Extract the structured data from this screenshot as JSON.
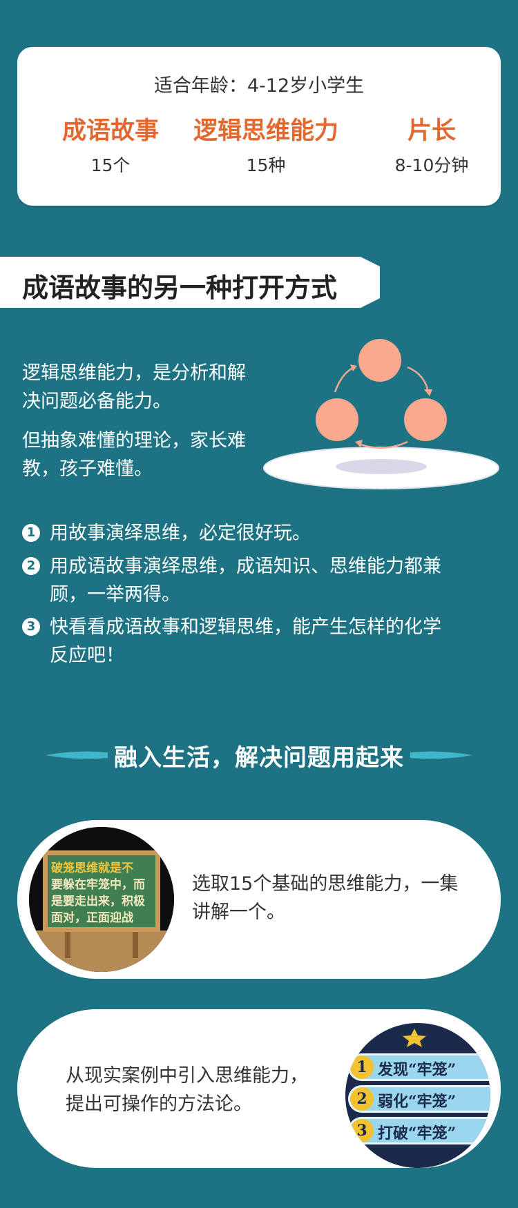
{
  "top_card": {
    "age_text": "适合年龄：4-12岁小学生",
    "stats": [
      {
        "label": "成语故事",
        "value": "15个"
      },
      {
        "label": "逻辑思维能力",
        "value": "15种"
      },
      {
        "label": "片长",
        "value": "8-10分钟"
      }
    ]
  },
  "section1": {
    "title": "成语故事的另一种打开方式",
    "paragraphs": [
      "逻辑思维能力，是分析和解决问题必备能力。",
      "但抽象难懂的理论，家长难教，孩子难懂。"
    ],
    "list": [
      {
        "num": "1",
        "text": "用故事演绎思维，必定很好玩。"
      },
      {
        "num": "2",
        "text": "用成语故事演绎思维，成语知识、思维能力都兼顾，一举两得。"
      },
      {
        "num": "3",
        "text": "快看看成语故事和逻辑思维，能产生怎样的化学反应吧！"
      }
    ]
  },
  "section2": {
    "title": "融入生活，解决问题用起来",
    "cards": [
      {
        "text": "选取15个基础的思维能力，一集讲解一个。",
        "board_lines": [
          "破笼思维就是不",
          "要躲在牢笼中，而",
          "是要走出来，积极",
          "面对，正面迎战"
        ]
      },
      {
        "text": "从现实案例中引入思维能力，提出可操作的方法论。",
        "menu": [
          {
            "num": "1",
            "text": "发现“牢笼”"
          },
          {
            "num": "2",
            "text": "弱化“牢笼”"
          },
          {
            "num": "3",
            "text": "打破“牢笼”"
          }
        ]
      }
    ]
  },
  "colors": {
    "background": "#1d7283",
    "accent": "#e2682f",
    "circle": "#f9a98d"
  }
}
